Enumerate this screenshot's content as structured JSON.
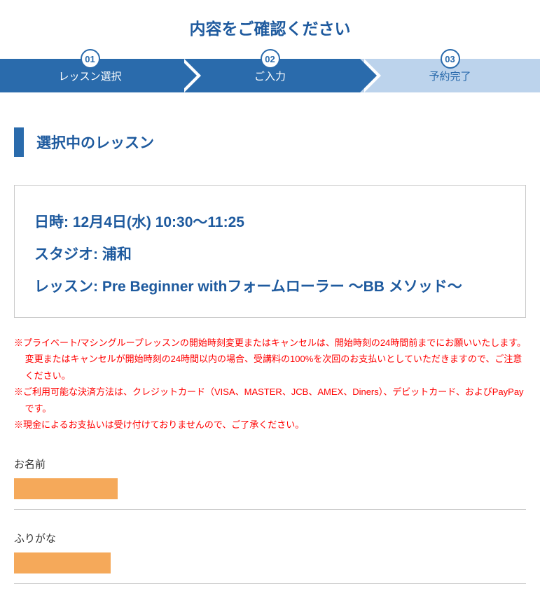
{
  "page_title": "内容をご確認ください",
  "steps": [
    {
      "num": "01",
      "label": "レッスン選択",
      "active": true
    },
    {
      "num": "02",
      "label": "ご入力",
      "active": true
    },
    {
      "num": "03",
      "label": "予約完了",
      "active": false
    }
  ],
  "section_heading": "選択中のレッスン",
  "lesson": {
    "datetime_label": "日時:",
    "datetime_value": "12月4日(水)   10:30～11:25",
    "studio_label": "スタジオ:",
    "studio_value": "浦和",
    "lesson_label": "レッスン:",
    "lesson_value": "Pre Beginner withフォームローラー ～BB メソッド～"
  },
  "notes": [
    "※プライベート/マシングループレッスンの開始時刻変更またはキャンセルは、開始時刻の24時間前までにお願いいたします。変更またはキャンセルが開始時刻の24時間以内の場合、受講料の100%を次回のお支払いとしていただきますので、ご注意ください。",
    "※ご利用可能な決済方法は、クレジットカード（VISA、MASTER、JCB、AMEX、Diners）、デビットカード、およびPayPayです。",
    "※現金によるお支払いは受け付けておりませんので、ご了承ください。"
  ],
  "form": {
    "name_label": "お名前",
    "furigana_label": "ふりがな"
  },
  "colors": {
    "primary": "#2a6bac",
    "primary_text": "#1e5a9e",
    "inactive_step": "#bcd3ec",
    "note_text": "#ff0000",
    "redacted": "#f5a95a",
    "border": "#c9c9c9"
  }
}
